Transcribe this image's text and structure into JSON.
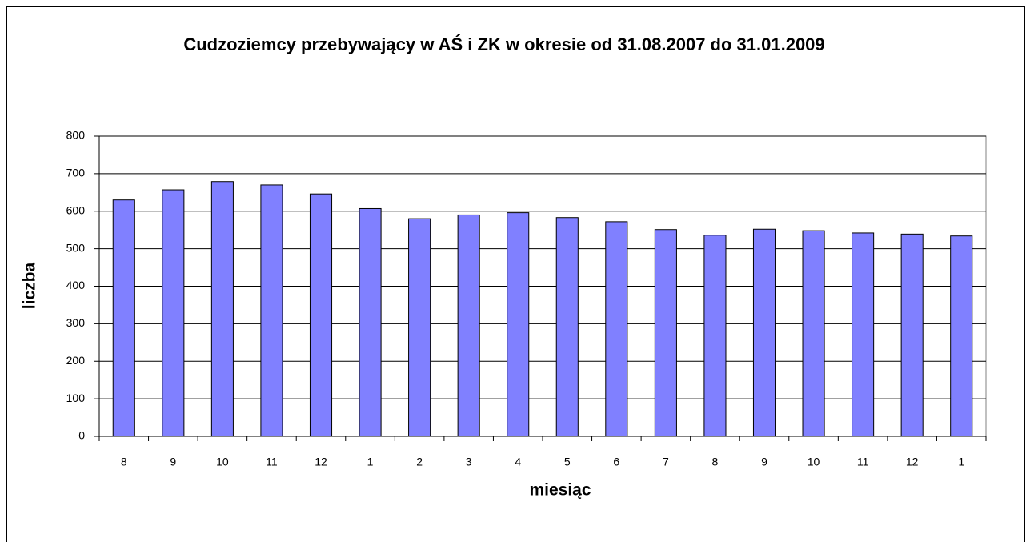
{
  "chart_data": {
    "type": "bar",
    "title": "Cudzoziemcy przebywający w AŚ i ZK w okresie od 31.08.2007 do 31.01.2009",
    "x_label": "miesiąc",
    "y_label": "liczba",
    "categories": [
      "8",
      "9",
      "10",
      "11",
      "12",
      "1",
      "2",
      "3",
      "4",
      "5",
      "6",
      "7",
      "8",
      "9",
      "10",
      "11",
      "12",
      "1"
    ],
    "values": [
      630,
      657,
      679,
      670,
      646,
      607,
      580,
      590,
      596,
      583,
      572,
      551,
      536,
      552,
      548,
      542,
      539,
      534
    ],
    "color": "#8080ff",
    "ylim": [
      0,
      800
    ],
    "yticks": [
      0,
      100,
      200,
      300,
      400,
      500,
      600,
      700,
      800
    ],
    "grid": true
  }
}
